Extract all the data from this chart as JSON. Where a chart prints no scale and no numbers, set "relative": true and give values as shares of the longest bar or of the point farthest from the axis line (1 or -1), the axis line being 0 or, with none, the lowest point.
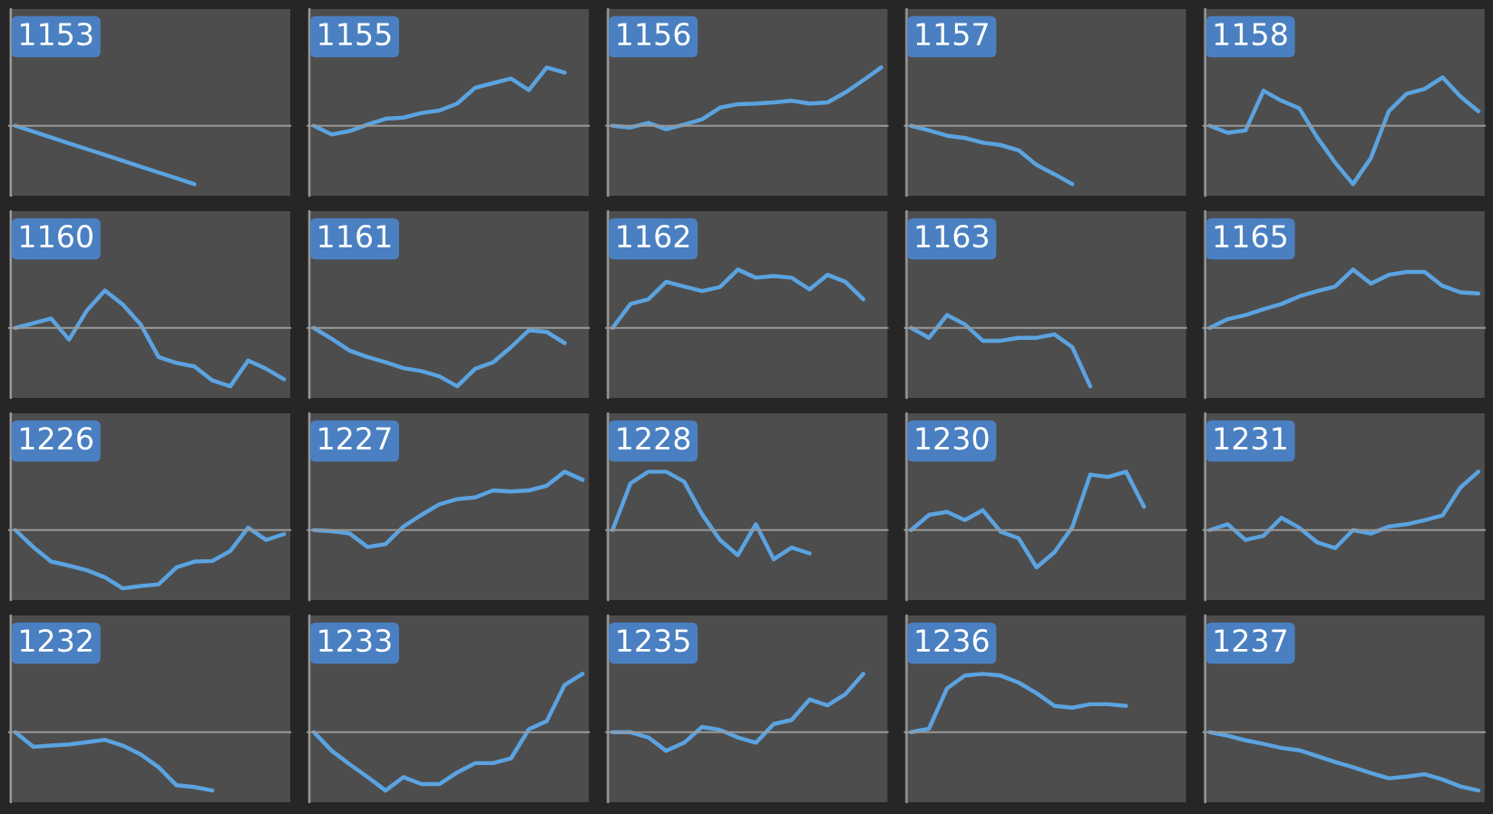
{
  "chart_data": [
    {
      "type": "line",
      "title": "1153",
      "relative": true,
      "color": "#5ba3e0",
      "categories": [
        null,
        null,
        null,
        null,
        null,
        null,
        null,
        null,
        null,
        null,
        null,
        null,
        null,
        null,
        null,
        null
      ],
      "values": [
        0,
        -0.1,
        -0.2,
        -0.3,
        -0.4,
        -0.5,
        -0.6,
        -0.7,
        -0.8,
        -0.9,
        -1,
        null,
        null,
        null,
        null,
        null
      ]
    },
    {
      "type": "line",
      "title": "1155",
      "relative": true,
      "color": "#5ba3e0",
      "categories": [
        null,
        null,
        null,
        null,
        null,
        null,
        null,
        null,
        null,
        null,
        null,
        null,
        null,
        null,
        null,
        null
      ],
      "values": [
        0,
        -0.15,
        -0.09,
        0.02,
        0.12,
        0.14,
        0.22,
        0.26,
        0.38,
        0.65,
        0.73,
        0.81,
        0.61,
        1,
        0.91,
        null
      ]
    },
    {
      "type": "line",
      "title": "1156",
      "relative": true,
      "color": "#5ba3e0",
      "categories": [
        null,
        null,
        null,
        null,
        null,
        null,
        null,
        null,
        null,
        null,
        null,
        null,
        null,
        null,
        null,
        null
      ],
      "values": [
        0,
        -0.03,
        0.05,
        -0.06,
        0.02,
        0.11,
        0.31,
        0.37,
        0.38,
        0.4,
        0.43,
        0.38,
        0.4,
        0.57,
        0.78,
        1
      ]
    },
    {
      "type": "line",
      "title": "1157",
      "relative": true,
      "color": "#5ba3e0",
      "categories": [
        null,
        null,
        null,
        null,
        null,
        null,
        null,
        null,
        null,
        null,
        null,
        null,
        null,
        null,
        null,
        null
      ],
      "values": [
        0,
        -0.08,
        -0.17,
        -0.21,
        -0.29,
        -0.33,
        -0.42,
        -0.67,
        -0.83,
        -1,
        null,
        null,
        null,
        null,
        null,
        null
      ]
    },
    {
      "type": "line",
      "title": "1158",
      "relative": true,
      "color": "#5ba3e0",
      "categories": [
        null,
        null,
        null,
        null,
        null,
        null,
        null,
        null,
        null,
        null,
        null,
        null,
        null,
        null,
        null,
        null
      ],
      "values": [
        0,
        -0.12,
        -0.08,
        0.6,
        0.43,
        0.3,
        -0.2,
        -0.63,
        -1,
        -0.55,
        0.25,
        0.55,
        0.63,
        0.83,
        0.5,
        0.25
      ]
    },
    {
      "type": "line",
      "title": "1160",
      "relative": true,
      "color": "#5ba3e0",
      "categories": [
        null,
        null,
        null,
        null,
        null,
        null,
        null,
        null,
        null,
        null,
        null,
        null,
        null,
        null,
        null,
        null
      ],
      "values": [
        0,
        0.08,
        0.16,
        -0.2,
        0.3,
        0.64,
        0.4,
        0.06,
        -0.5,
        -0.6,
        -0.66,
        -0.9,
        -1,
        -0.56,
        -0.7,
        -0.88
      ]
    },
    {
      "type": "line",
      "title": "1161",
      "relative": true,
      "color": "#5ba3e0",
      "categories": [
        null,
        null,
        null,
        null,
        null,
        null,
        null,
        null,
        null,
        null,
        null,
        null,
        null,
        null,
        null,
        null
      ],
      "values": [
        0,
        -0.19,
        -0.39,
        -0.5,
        -0.59,
        -0.69,
        -0.74,
        -0.83,
        -1,
        -0.7,
        -0.59,
        -0.33,
        -0.04,
        -0.07,
        -0.26,
        null
      ]
    },
    {
      "type": "line",
      "title": "1162",
      "relative": true,
      "color": "#5ba3e0",
      "categories": [
        null,
        null,
        null,
        null,
        null,
        null,
        null,
        null,
        null,
        null,
        null,
        null,
        null,
        null,
        null,
        null
      ],
      "values": [
        0,
        0.41,
        0.49,
        0.79,
        0.71,
        0.63,
        0.7,
        1,
        0.86,
        0.89,
        0.86,
        0.66,
        0.91,
        0.79,
        0.49,
        null
      ]
    },
    {
      "type": "line",
      "title": "1163",
      "relative": true,
      "color": "#5ba3e0",
      "categories": [
        null,
        null,
        null,
        null,
        null,
        null,
        null,
        null,
        null,
        null,
        null,
        null,
        null,
        null,
        null,
        null
      ],
      "values": [
        0,
        -0.17,
        0.22,
        0.06,
        -0.22,
        -0.22,
        -0.17,
        -0.17,
        -0.11,
        -0.33,
        -1,
        null,
        null,
        null,
        null,
        null
      ]
    },
    {
      "type": "line",
      "title": "1165",
      "relative": true,
      "color": "#5ba3e0",
      "categories": [
        null,
        null,
        null,
        null,
        null,
        null,
        null,
        null,
        null,
        null,
        null,
        null,
        null,
        null,
        null,
        null
      ],
      "values": [
        0,
        0.15,
        0.22,
        0.32,
        0.41,
        0.54,
        0.63,
        0.71,
        1,
        0.76,
        0.91,
        0.96,
        0.96,
        0.72,
        0.61,
        0.59
      ]
    },
    {
      "type": "line",
      "title": "1226",
      "relative": true,
      "color": "#5ba3e0",
      "categories": [
        null,
        null,
        null,
        null,
        null,
        null,
        null,
        null,
        null,
        null,
        null,
        null,
        null,
        null,
        null,
        null
      ],
      "values": [
        0,
        -0.29,
        -0.54,
        -0.61,
        -0.69,
        -0.81,
        -1,
        -0.96,
        -0.93,
        -0.64,
        -0.54,
        -0.53,
        -0.36,
        0.04,
        -0.17,
        -0.07
      ]
    },
    {
      "type": "line",
      "title": "1227",
      "relative": true,
      "color": "#5ba3e0",
      "categories": [
        null,
        null,
        null,
        null,
        null,
        null,
        null,
        null,
        null,
        null,
        null,
        null,
        null,
        null,
        null,
        null
      ],
      "values": [
        0,
        -0.02,
        -0.06,
        -0.29,
        -0.24,
        0.06,
        0.26,
        0.44,
        0.53,
        0.56,
        0.68,
        0.66,
        0.68,
        0.76,
        1,
        0.86
      ]
    },
    {
      "type": "line",
      "title": "1228",
      "relative": true,
      "color": "#5ba3e0",
      "categories": [
        null,
        null,
        null,
        null,
        null,
        null,
        null,
        null,
        null,
        null,
        null,
        null,
        null,
        null,
        null,
        null
      ],
      "values": [
        0,
        0.8,
        1,
        1,
        0.83,
        0.27,
        -0.17,
        -0.43,
        0.1,
        -0.5,
        -0.3,
        -0.4,
        null,
        null,
        null,
        null
      ]
    },
    {
      "type": "line",
      "title": "1230",
      "relative": true,
      "color": "#5ba3e0",
      "categories": [
        null,
        null,
        null,
        null,
        null,
        null,
        null,
        null,
        null,
        null,
        null,
        null,
        null,
        null,
        null,
        null
      ],
      "values": [
        0,
        0.26,
        0.31,
        0.17,
        0.34,
        -0.03,
        -0.14,
        -0.64,
        -0.38,
        0.05,
        0.95,
        0.91,
        1,
        0.4,
        null,
        null
      ]
    },
    {
      "type": "line",
      "title": "1231",
      "relative": true,
      "color": "#5ba3e0",
      "categories": [
        null,
        null,
        null,
        null,
        null,
        null,
        null,
        null,
        null,
        null,
        null,
        null,
        null,
        null,
        null,
        null
      ],
      "values": [
        0,
        0.1,
        -0.17,
        -0.1,
        0.21,
        0.04,
        -0.21,
        -0.31,
        0,
        -0.06,
        0.06,
        0.1,
        0.17,
        0.25,
        0.73,
        1
      ]
    },
    {
      "type": "line",
      "title": "1232",
      "relative": true,
      "color": "#5ba3e0",
      "categories": [
        null,
        null,
        null,
        null,
        null,
        null,
        null,
        null,
        null,
        null,
        null,
        null,
        null,
        null,
        null,
        null
      ],
      "values": [
        0,
        -0.25,
        -0.23,
        -0.21,
        -0.17,
        -0.13,
        -0.23,
        -0.38,
        -0.6,
        -0.91,
        -0.94,
        -1,
        null,
        null,
        null,
        null
      ]
    },
    {
      "type": "line",
      "title": "1233",
      "relative": true,
      "color": "#5ba3e0",
      "categories": [
        null,
        null,
        null,
        null,
        null,
        null,
        null,
        null,
        null,
        null,
        null,
        null,
        null,
        null,
        null,
        null
      ],
      "values": [
        0,
        -0.32,
        -0.55,
        -0.77,
        -1,
        -0.77,
        -0.89,
        -0.89,
        -0.69,
        -0.53,
        -0.53,
        -0.45,
        0.05,
        0.19,
        0.81,
        1
      ]
    },
    {
      "type": "line",
      "title": "1235",
      "relative": true,
      "color": "#5ba3e0",
      "categories": [
        null,
        null,
        null,
        null,
        null,
        null,
        null,
        null,
        null,
        null,
        null,
        null,
        null,
        null,
        null,
        null
      ],
      "values": [
        0,
        0,
        -0.09,
        -0.32,
        -0.18,
        0.09,
        0.04,
        -0.09,
        -0.18,
        0.14,
        0.21,
        0.56,
        0.46,
        0.65,
        1,
        null
      ]
    },
    {
      "type": "line",
      "title": "1236",
      "relative": true,
      "color": "#5ba3e0",
      "categories": [
        null,
        null,
        null,
        null,
        null,
        null,
        null,
        null,
        null,
        null,
        null,
        null,
        null,
        null,
        null,
        null
      ],
      "values": [
        0,
        0.06,
        0.75,
        0.97,
        1,
        0.97,
        0.85,
        0.67,
        0.45,
        0.42,
        0.48,
        0.48,
        0.45,
        null,
        null,
        null
      ]
    },
    {
      "type": "line",
      "title": "1237",
      "relative": true,
      "color": "#5ba3e0",
      "categories": [
        null,
        null,
        null,
        null,
        null,
        null,
        null,
        null,
        null,
        null,
        null,
        null,
        null,
        null,
        null,
        null
      ],
      "values": [
        0,
        -0.06,
        -0.14,
        -0.2,
        -0.27,
        -0.31,
        -0.41,
        -0.51,
        -0.6,
        -0.7,
        -0.79,
        -0.76,
        -0.72,
        -0.81,
        -0.93,
        -1
      ]
    }
  ]
}
